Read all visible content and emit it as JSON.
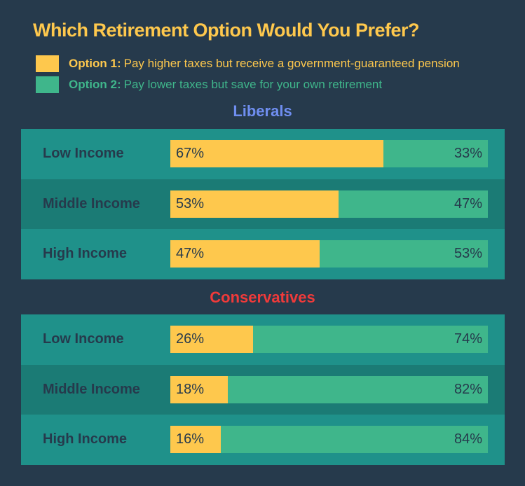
{
  "colors": {
    "background": "#263a4c",
    "option1": "#fec84d",
    "option2": "#3fb68b",
    "liberals": "#6f8ef0",
    "conservatives": "#f03a3a",
    "row_light": "#1f918a",
    "row_dark": "#1b7b75"
  },
  "chart_data": {
    "type": "bar",
    "orientation": "horizontal",
    "stacked": true,
    "title": "Which Retirement Option Would You Prefer?",
    "legend": [
      {
        "key": "Option 1:",
        "text": "Pay higher taxes but receive a government-guaranteed pension"
      },
      {
        "key": "Option 2:",
        "text": "Pay lower taxes but save for your own retirement"
      }
    ],
    "groups": [
      {
        "name": "Liberals",
        "categories": [
          "Low Income",
          "Middle Income",
          "High Income"
        ],
        "option1": [
          67,
          53,
          47
        ],
        "option2": [
          33,
          47,
          53
        ]
      },
      {
        "name": "Conservatives",
        "categories": [
          "Low Income",
          "Middle Income",
          "High Income"
        ],
        "option1": [
          26,
          18,
          16
        ],
        "option2": [
          74,
          82,
          84
        ]
      }
    ],
    "unit": "%"
  }
}
